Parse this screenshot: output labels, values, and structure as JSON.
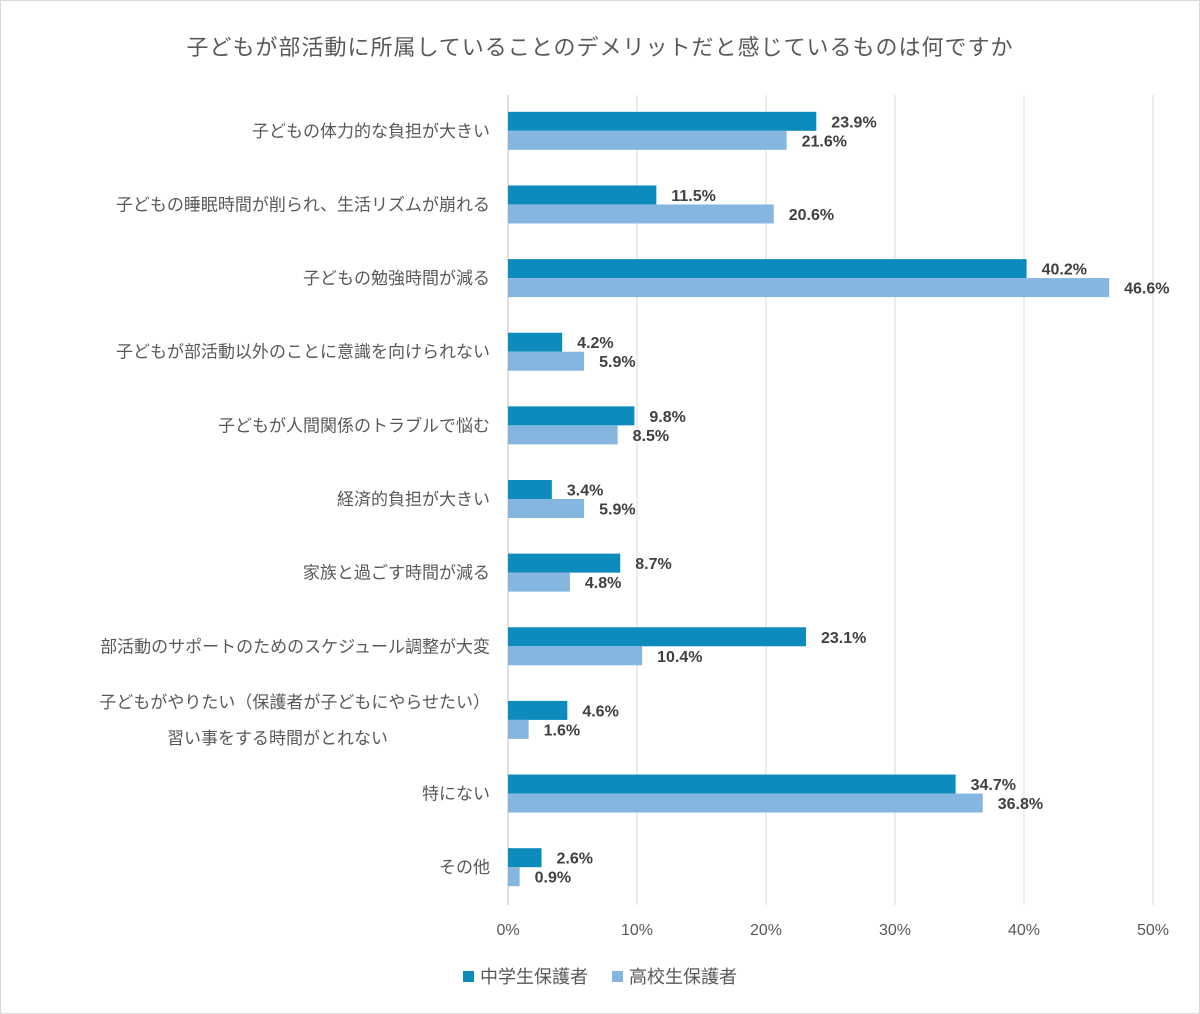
{
  "chart_data": {
    "type": "bar",
    "orientation": "horizontal",
    "title": "子どもが部活動に所属していることのデメリットだと感じているものは何ですか",
    "categories": [
      "子どもの体力的な負担が大きい",
      "子どもの睡眠時間が削られ、生活リズムが崩れる",
      "子どもの勉強時間が減る",
      "子どもが部活動以外のことに意識を向けられない",
      "子どもが人間関係のトラブルで悩む",
      "経済的負担が大きい",
      "家族と過ごす時間が減る",
      "部活動のサポートのためのスケジュール調整が大変",
      "子どもがやりたい（保護者が子どもにやらせたい）\n習い事をする時間がとれない",
      "特にない",
      "その他"
    ],
    "series": [
      {
        "name": "中学生保護者",
        "color": "#0e8bbd",
        "values": [
          23.9,
          11.5,
          40.2,
          4.2,
          9.8,
          3.4,
          8.7,
          23.1,
          4.6,
          34.7,
          2.6
        ]
      },
      {
        "name": "高校生保護者",
        "color": "#84b6e0",
        "values": [
          21.6,
          20.6,
          46.6,
          5.9,
          8.5,
          5.9,
          4.8,
          10.4,
          1.6,
          36.8,
          0.9
        ]
      }
    ],
    "xlim": [
      0,
      50
    ],
    "xticks": [
      "0%",
      "10%",
      "20%",
      "30%",
      "40%",
      "50%"
    ],
    "value_suffix": "%",
    "grid": "vertical",
    "legend": "bottom"
  }
}
